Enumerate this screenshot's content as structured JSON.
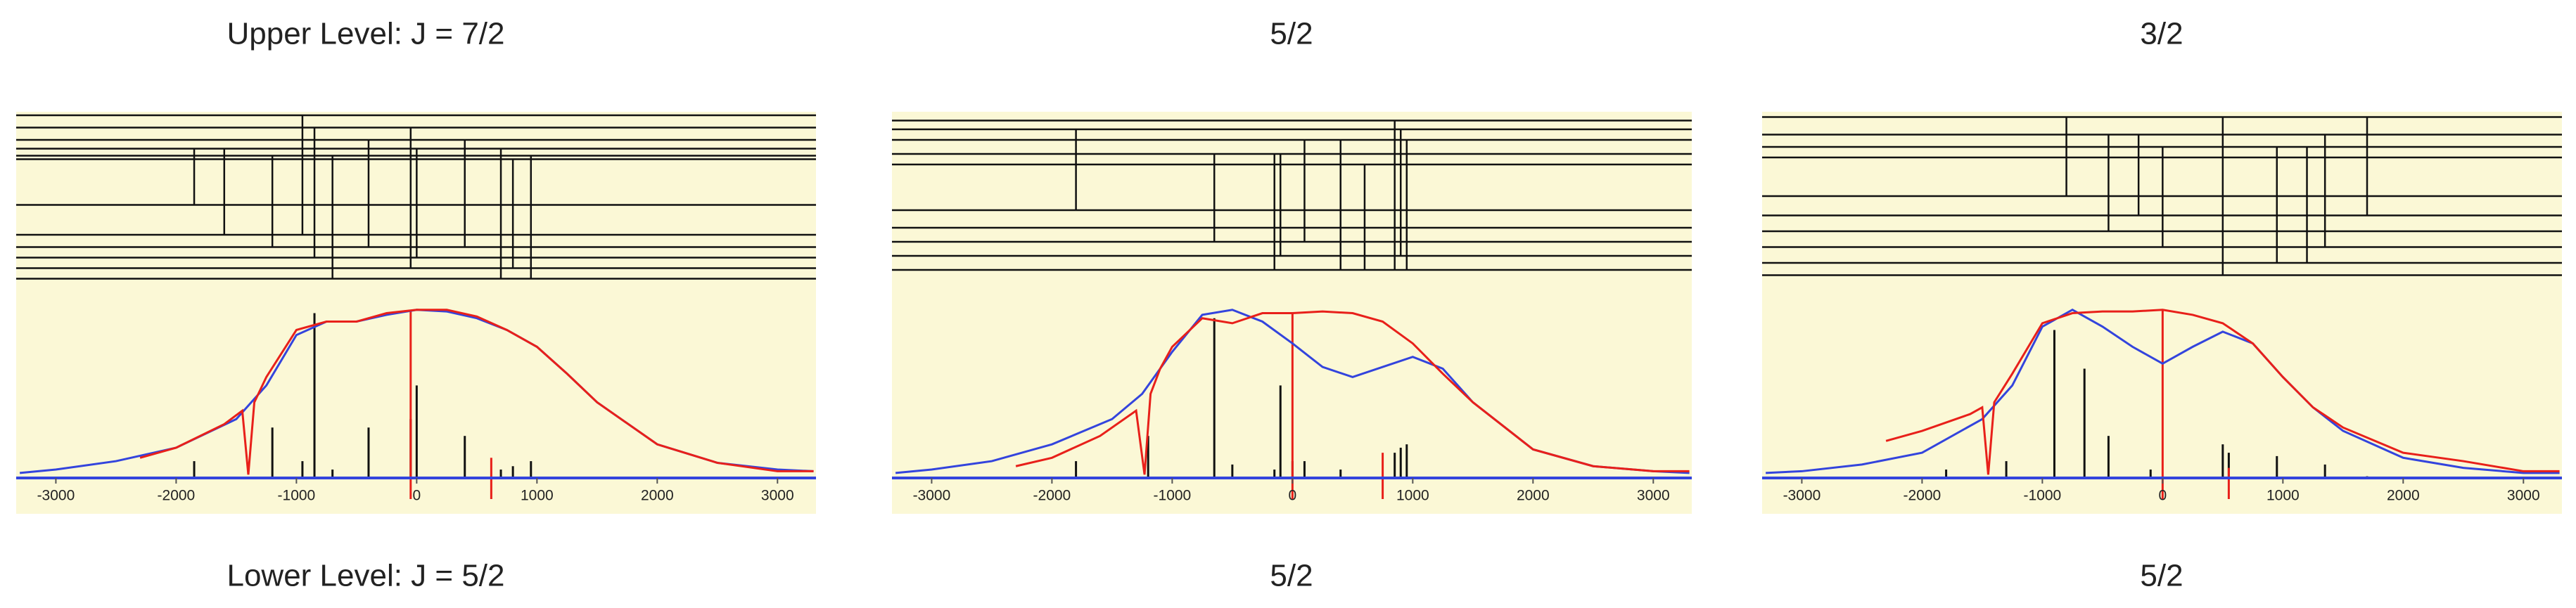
{
  "chart_data": [
    {
      "type": "line",
      "title": "Upper Level: J = 7/2",
      "x_label": "Lower Level: J = 5/2",
      "xlim": [
        -3330,
        3320
      ],
      "ylim": [
        0,
        1.07
      ],
      "xticks": [
        -3000,
        -2000,
        -1000,
        0,
        1000,
        2000,
        3000
      ],
      "background": "#fbf8d6",
      "axis_color": "#3344dd",
      "grid": false,
      "series": [
        {
          "color": "#3344dd",
          "x": [
            -3300,
            -3000,
            -2500,
            -2000,
            -1500,
            -1250,
            -1000,
            -750,
            -500,
            -250,
            0,
            250,
            500,
            750,
            1000,
            1250,
            1500,
            2000,
            2500,
            3000,
            3300
          ],
          "values": [
            0.03,
            0.05,
            0.1,
            0.18,
            0.35,
            0.55,
            0.85,
            0.93,
            0.93,
            0.97,
            1.0,
            0.99,
            0.95,
            0.88,
            0.78,
            0.62,
            0.45,
            0.2,
            0.09,
            0.05,
            0.04
          ]
        },
        {
          "color": "#e8201a",
          "x": [
            -2300,
            -2000,
            -1600,
            -1450,
            -1400,
            -1350,
            -1250,
            -1000,
            -750,
            -500,
            -250,
            0,
            250,
            500,
            750,
            1000,
            1250,
            1500,
            2000,
            2500,
            3000,
            3300
          ],
          "values": [
            0.12,
            0.18,
            0.32,
            0.4,
            0.02,
            0.45,
            0.6,
            0.88,
            0.93,
            0.93,
            0.98,
            1.0,
            1.0,
            0.96,
            0.88,
            0.78,
            0.62,
            0.45,
            0.2,
            0.09,
            0.04,
            0.04
          ]
        }
      ],
      "sticks": {
        "color": "#111111",
        "x": [
          -1850,
          -1200,
          -950,
          -850,
          -700,
          -400,
          -50,
          0,
          400,
          700,
          800,
          950
        ],
        "values": [
          0.1,
          0.3,
          0.1,
          0.98,
          0.05,
          0.3,
          0.35,
          0.55,
          0.25,
          0.05,
          0.07,
          0.1
        ]
      },
      "markers": {
        "color": "#e8201a",
        "x": [
          -50,
          620
        ],
        "values": [
          1.0,
          0.12
        ]
      },
      "level_diagram": {
        "levels": [
          0.02,
          0.09,
          0.16,
          0.21,
          0.25,
          0.27,
          0.53,
          0.7,
          0.77,
          0.83,
          0.89,
          0.95
        ],
        "transitions": [
          {
            "x": -1850,
            "from": 3,
            "to": 6
          },
          {
            "x": -1600,
            "from": 3,
            "to": 7
          },
          {
            "x": -1200,
            "from": 4,
            "to": 8
          },
          {
            "x": -950,
            "from": 0,
            "to": 7
          },
          {
            "x": -850,
            "from": 1,
            "to": 9
          },
          {
            "x": -700,
            "from": 4,
            "to": 11
          },
          {
            "x": -400,
            "from": 2,
            "to": 8
          },
          {
            "x": -50,
            "from": 1,
            "to": 10
          },
          {
            "x": 0,
            "from": 3,
            "to": 9
          },
          {
            "x": 400,
            "from": 2,
            "to": 8
          },
          {
            "x": 700,
            "from": 3,
            "to": 11
          },
          {
            "x": 800,
            "from": 5,
            "to": 10
          },
          {
            "x": 950,
            "from": 4,
            "to": 11
          }
        ]
      }
    },
    {
      "type": "line",
      "title": "5/2",
      "x_label": "5/2",
      "xlim": [
        -3330,
        3320
      ],
      "ylim": [
        0,
        1.07
      ],
      "xticks": [
        -3000,
        -2000,
        -1000,
        0,
        1000,
        2000,
        3000
      ],
      "background": "#fbf8d6",
      "axis_color": "#3344dd",
      "grid": false,
      "series": [
        {
          "color": "#3344dd",
          "x": [
            -3300,
            -3000,
            -2500,
            -2000,
            -1500,
            -1250,
            -1000,
            -750,
            -500,
            -250,
            0,
            250,
            500,
            750,
            1000,
            1250,
            1500,
            2000,
            2500,
            3000,
            3300
          ],
          "values": [
            0.03,
            0.05,
            0.1,
            0.2,
            0.35,
            0.5,
            0.75,
            0.97,
            1.0,
            0.93,
            0.8,
            0.66,
            0.6,
            0.66,
            0.72,
            0.65,
            0.45,
            0.17,
            0.07,
            0.04,
            0.03
          ]
        },
        {
          "color": "#e8201a",
          "x": [
            -2300,
            -2000,
            -1600,
            -1300,
            -1230,
            -1180,
            -1100,
            -1000,
            -750,
            -500,
            -250,
            0,
            250,
            500,
            750,
            1000,
            1250,
            1500,
            2000,
            2500,
            3000,
            3300
          ],
          "values": [
            0.07,
            0.12,
            0.25,
            0.4,
            0.02,
            0.5,
            0.65,
            0.78,
            0.95,
            0.92,
            0.98,
            0.98,
            0.99,
            0.98,
            0.93,
            0.8,
            0.62,
            0.45,
            0.17,
            0.07,
            0.04,
            0.04
          ]
        }
      ],
      "sticks": {
        "color": "#111111",
        "x": [
          -1800,
          -1200,
          -650,
          -500,
          -150,
          -100,
          0,
          100,
          400,
          850,
          900,
          950
        ],
        "values": [
          0.1,
          0.25,
          0.95,
          0.08,
          0.05,
          0.55,
          0.1,
          0.1,
          0.05,
          0.15,
          0.18,
          0.2
        ]
      },
      "markers": {
        "color": "#e8201a",
        "x": [
          0,
          750
        ],
        "values": [
          0.98,
          0.15
        ]
      },
      "level_diagram": {
        "levels": [
          0.05,
          0.1,
          0.16,
          0.24,
          0.3,
          0.56,
          0.66,
          0.74,
          0.82,
          0.9
        ],
        "transitions": [
          {
            "x": -1800,
            "from": 1,
            "to": 5
          },
          {
            "x": -650,
            "from": 3,
            "to": 7
          },
          {
            "x": -150,
            "from": 3,
            "to": 9
          },
          {
            "x": -100,
            "from": 3,
            "to": 8
          },
          {
            "x": 100,
            "from": 2,
            "to": 7
          },
          {
            "x": 400,
            "from": 2,
            "to": 9
          },
          {
            "x": 600,
            "from": 4,
            "to": 9
          },
          {
            "x": 850,
            "from": 0,
            "to": 9
          },
          {
            "x": 900,
            "from": 1,
            "to": 8
          },
          {
            "x": 950,
            "from": 2,
            "to": 9
          }
        ]
      }
    },
    {
      "type": "line",
      "title": "3/2",
      "x_label": "5/2",
      "xlim": [
        -3330,
        3320
      ],
      "ylim": [
        0,
        1.07
      ],
      "xticks": [
        -3000,
        -2000,
        -1000,
        0,
        1000,
        2000,
        3000
      ],
      "background": "#fbf8d6",
      "axis_color": "#3344dd",
      "grid": false,
      "series": [
        {
          "color": "#3344dd",
          "x": [
            -3300,
            -3000,
            -2500,
            -2000,
            -1500,
            -1250,
            -1000,
            -750,
            -500,
            -250,
            0,
            250,
            500,
            750,
            1000,
            1250,
            1500,
            2000,
            2500,
            3000,
            3300
          ],
          "values": [
            0.03,
            0.04,
            0.08,
            0.15,
            0.35,
            0.55,
            0.9,
            1.0,
            0.9,
            0.78,
            0.68,
            0.78,
            0.87,
            0.8,
            0.6,
            0.42,
            0.28,
            0.12,
            0.06,
            0.03,
            0.03
          ]
        },
        {
          "color": "#e8201a",
          "x": [
            -2300,
            -2000,
            -1600,
            -1500,
            -1450,
            -1400,
            -1250,
            -1000,
            -750,
            -500,
            -250,
            0,
            250,
            500,
            750,
            1000,
            1250,
            1500,
            2000,
            2500,
            3000,
            3300
          ],
          "values": [
            0.22,
            0.28,
            0.38,
            0.42,
            0.02,
            0.45,
            0.62,
            0.92,
            0.98,
            0.99,
            0.99,
            1.0,
            0.97,
            0.92,
            0.8,
            0.6,
            0.42,
            0.3,
            0.15,
            0.1,
            0.04,
            0.04
          ]
        }
      ],
      "sticks": {
        "color": "#111111",
        "x": [
          -1800,
          -1300,
          -900,
          -650,
          -450,
          -100,
          500,
          550,
          950,
          1350,
          1700
        ],
        "values": [
          0.05,
          0.1,
          0.88,
          0.65,
          0.25,
          0.05,
          0.2,
          0.15,
          0.13,
          0.08,
          0.01
        ]
      },
      "markers": {
        "color": "#e8201a",
        "x": [
          0,
          550
        ],
        "values": [
          1.0,
          0.06
        ]
      },
      "level_diagram": {
        "levels": [
          0.03,
          0.13,
          0.2,
          0.26,
          0.48,
          0.59,
          0.68,
          0.77,
          0.86,
          0.93
        ],
        "transitions": [
          {
            "x": -800,
            "from": 0,
            "to": 4
          },
          {
            "x": -450,
            "from": 1,
            "to": 6
          },
          {
            "x": -200,
            "from": 1,
            "to": 5
          },
          {
            "x": 0,
            "from": 2,
            "to": 7
          },
          {
            "x": 500,
            "from": 0,
            "to": 9
          },
          {
            "x": 950,
            "from": 2,
            "to": 8
          },
          {
            "x": 1200,
            "from": 2,
            "to": 8
          },
          {
            "x": 1350,
            "from": 1,
            "to": 7
          },
          {
            "x": 1700,
            "from": 0,
            "to": 5
          }
        ]
      }
    }
  ]
}
